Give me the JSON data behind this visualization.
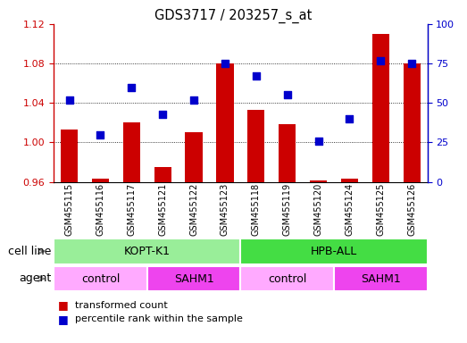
{
  "title": "GDS3717 / 203257_s_at",
  "samples": [
    "GSM455115",
    "GSM455116",
    "GSM455117",
    "GSM455121",
    "GSM455122",
    "GSM455123",
    "GSM455118",
    "GSM455119",
    "GSM455120",
    "GSM455124",
    "GSM455125",
    "GSM455126"
  ],
  "bar_values": [
    1.013,
    0.963,
    1.02,
    0.975,
    1.01,
    1.08,
    1.033,
    1.018,
    0.961,
    0.963,
    1.11,
    1.08
  ],
  "dot_values": [
    52,
    30,
    60,
    43,
    52,
    75,
    67,
    55,
    26,
    40,
    77,
    75
  ],
  "bar_base": 0.96,
  "ylim_left": [
    0.96,
    1.12
  ],
  "ylim_right": [
    0,
    100
  ],
  "yticks_left": [
    0.96,
    1.0,
    1.04,
    1.08,
    1.12
  ],
  "yticks_right": [
    0,
    25,
    50,
    75,
    100
  ],
  "bar_color": "#cc0000",
  "dot_color": "#0000cc",
  "cell_line_groups": [
    {
      "label": "KOPT-K1",
      "start": 0,
      "end": 6,
      "color": "#99ee99"
    },
    {
      "label": "HPB-ALL",
      "start": 6,
      "end": 12,
      "color": "#44dd44"
    }
  ],
  "agent_groups": [
    {
      "label": "control",
      "start": 0,
      "end": 3,
      "color": "#ffaaff"
    },
    {
      "label": "SAHM1",
      "start": 3,
      "end": 6,
      "color": "#ee44ee"
    },
    {
      "label": "control",
      "start": 6,
      "end": 9,
      "color": "#ffaaff"
    },
    {
      "label": "SAHM1",
      "start": 9,
      "end": 12,
      "color": "#ee44ee"
    }
  ],
  "legend_bar_label": "transformed count",
  "legend_dot_label": "percentile rank within the sample",
  "cell_line_label": "cell line",
  "agent_label": "agent",
  "grid_yticks": [
    1.0,
    1.04,
    1.08
  ],
  "bg_color": "#ffffff",
  "plot_bg": "#ffffff",
  "bar_width": 0.55,
  "dot_size": 30
}
